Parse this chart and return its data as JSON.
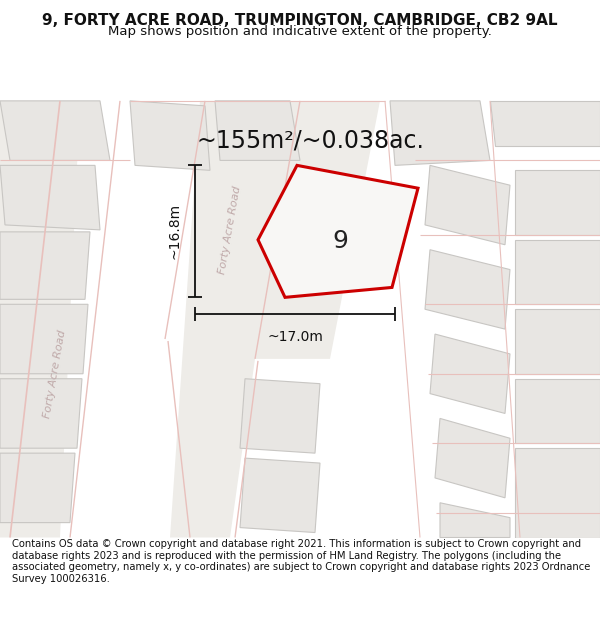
{
  "title": "9, FORTY ACRE ROAD, TRUMPINGTON, CAMBRIDGE, CB2 9AL",
  "subtitle": "Map shows position and indicative extent of the property.",
  "area_text": "~155m²/~0.038ac.",
  "width_text": "~17.0m",
  "height_text": "~16.8m",
  "label_9": "9",
  "footer": "Contains OS data © Crown copyright and database right 2021. This information is subject to Crown copyright and database rights 2023 and is reproduced with the permission of HM Land Registry. The polygons (including the associated geometry, namely x, y co-ordinates) are subject to Crown copyright and database rights 2023 Ordnance Survey 100026316.",
  "map_bg": "#f5f4f2",
  "building_fill": "#e8e6e3",
  "building_edge": "#c8c6c3",
  "road_stripe_color": "#f0eeec",
  "road_line_color": "#e8c0bc",
  "highlight_color": "#cc0000",
  "highlight_fill": "#f5f4f2",
  "road_label_color": "#c0aaaa",
  "dim_line_color": "#111111",
  "title_fontsize": 11,
  "subtitle_fontsize": 9.5,
  "footer_fontsize": 7.2,
  "area_fontsize": 17,
  "dim_fontsize": 10,
  "label_fontsize": 18,
  "road_label_fontsize": 8
}
